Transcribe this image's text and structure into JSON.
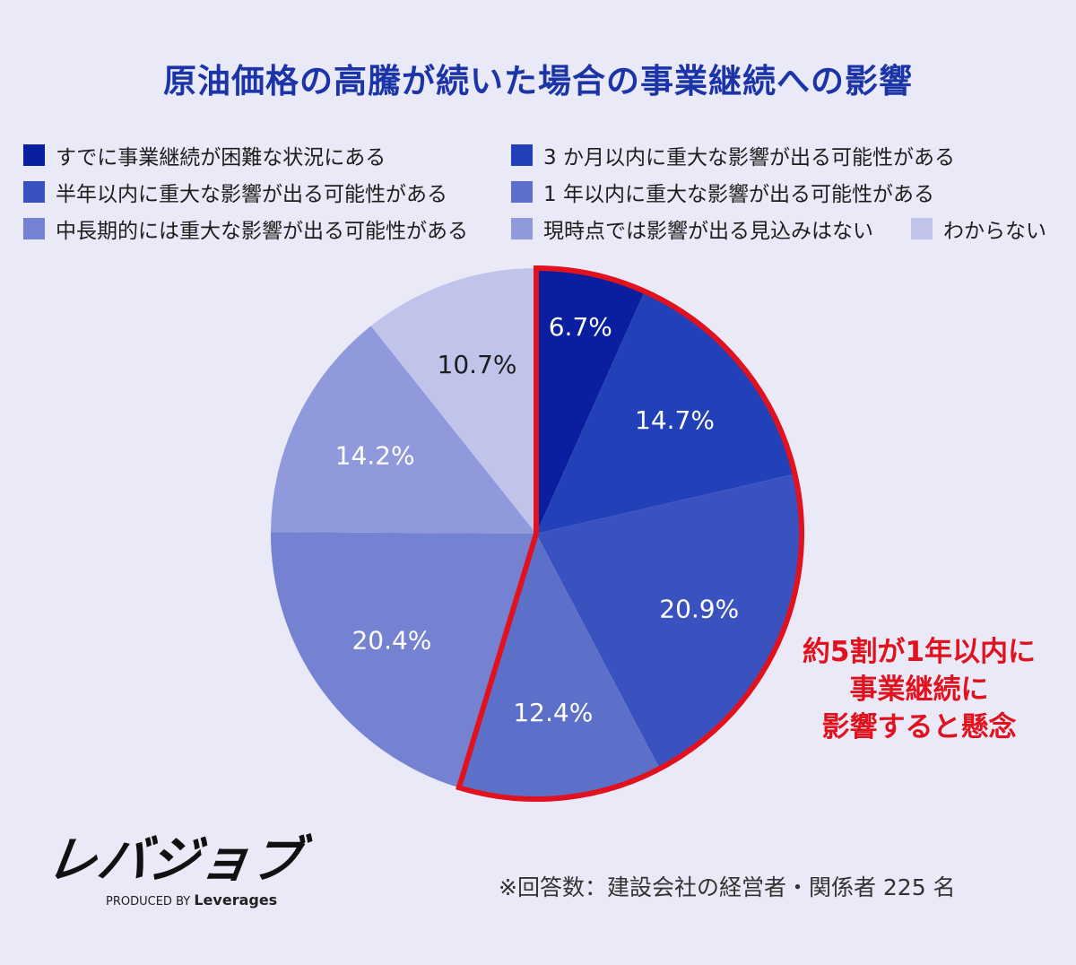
{
  "title": "原油価格の高騰が続いた場合の事業継続への影響",
  "legend": [
    {
      "label": "すでに事業継続が困難な状況にある",
      "color": "#0a1fa0"
    },
    {
      "label": "3 か月以内に重大な影響が出る可能性がある",
      "color": "#2240b8"
    },
    {
      "label": "半年以内に重大な影響が出る可能性がある",
      "color": "#3a52c0"
    },
    {
      "label": "1 年以内に重大な影響が出る可能性がある",
      "color": "#5c70ca"
    },
    {
      "label": "中長期的には重大な影響が出る可能性がある",
      "color": "#7582d2"
    },
    {
      "label": "現時点では影響が出る見込みはない",
      "color": "#9099db"
    },
    {
      "label": "わからない",
      "color": "#c0c3ea"
    }
  ],
  "chart_data": {
    "type": "pie",
    "categories": [
      "すでに事業継続が困難な状況にある",
      "3 か月以内に重大な影響が出る可能性がある",
      "半年以内に重大な影響が出る可能性がある",
      "1 年以内に重大な影響が出る可能性がある",
      "中長期的には重大な影響が出る可能性がある",
      "現時点では影響が出る見込みはない",
      "わからない"
    ],
    "values": [
      6.7,
      14.7,
      20.9,
      12.4,
      20.4,
      14.2,
      10.7
    ],
    "labels": [
      "6.7%",
      "14.7%",
      "20.9%",
      "12.4%",
      "20.4%",
      "14.2%",
      "10.7%"
    ],
    "colors": [
      "#0a1fa0",
      "#2240b8",
      "#3a52c0",
      "#5c70ca",
      "#7582d2",
      "#9099db",
      "#c0c3ea"
    ],
    "label_colors": [
      "#ffffff",
      "#ffffff",
      "#ffffff",
      "#ffffff",
      "#ffffff",
      "#ffffff",
      "#1e1e1e"
    ],
    "start": "12 o'clock, clockwise",
    "highlight": {
      "slices": [
        0,
        1,
        2,
        3
      ],
      "color": "#e1121e",
      "note": "outline of first four slices"
    }
  },
  "callout": {
    "line1": "約5割が1年以内に",
    "line2": "事業継続に",
    "line3": "影響すると懸念"
  },
  "logo": {
    "main": "レバジョブ",
    "produced_by": "PRODUCED BY",
    "brand": "Leverages"
  },
  "footnote": "※回答数：建設会社の経営者・関係者 225 名"
}
